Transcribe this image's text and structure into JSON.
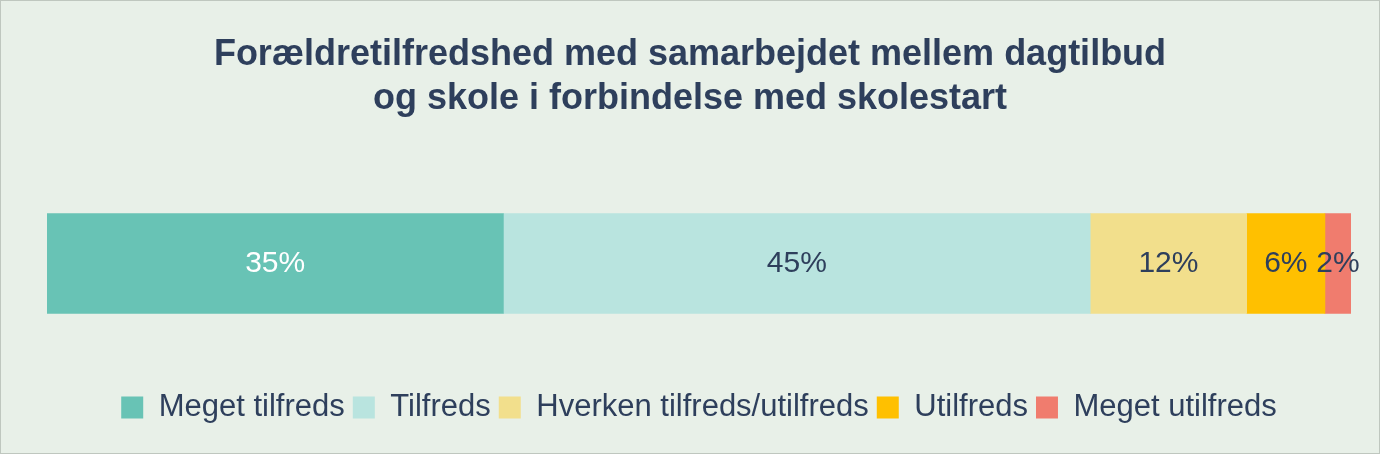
{
  "chart_data": {
    "type": "bar",
    "orientation": "horizontal",
    "stacked": true,
    "title": "Forældretilfredshed med samarbejdet mellem dagtilbud og skole i forbindelse med skolestart",
    "categories": [
      null
    ],
    "xlim": [
      0,
      100
    ],
    "tick_labels": false,
    "legend": "bottom",
    "series": [
      {
        "name": "Meget tilfreds",
        "color": "#68c3b5",
        "values": [
          35
        ],
        "value_labels": [
          "35%"
        ]
      },
      {
        "name": "Tilfreds",
        "color": "#b9e4df",
        "values": [
          45
        ],
        "value_labels": [
          "45%"
        ]
      },
      {
        "name": "Hverken tilfreds/utilfreds",
        "color": "#f2df8c",
        "values": [
          12
        ],
        "value_labels": [
          "12%"
        ]
      },
      {
        "name": "Utilfreds",
        "color": "#ffc000",
        "values": [
          6
        ],
        "value_labels": [
          "6%"
        ]
      },
      {
        "name": "Meget utilfreds",
        "color": "#f07c6e",
        "values": [
          2
        ],
        "value_labels": [
          "2%"
        ]
      }
    ]
  }
}
